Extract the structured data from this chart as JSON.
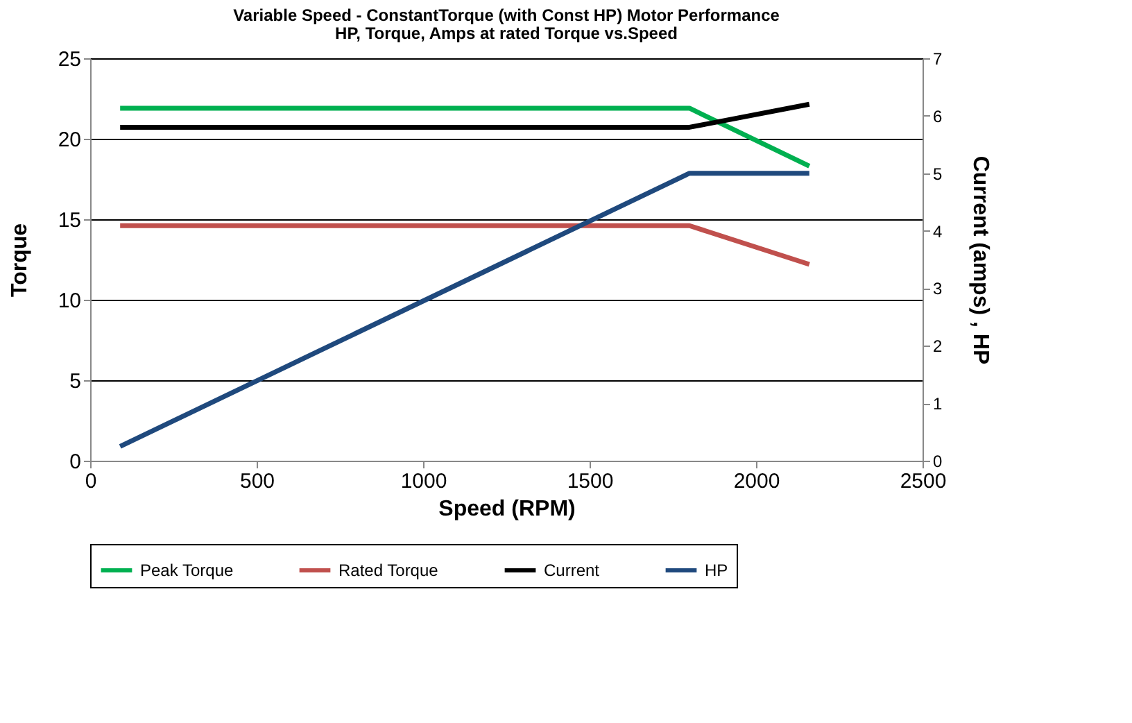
{
  "chart_data": {
    "type": "line",
    "title": "Variable Speed - ConstantTorque  (with  Const HP) Motor Performance",
    "subtitle": "HP, Torque, Amps at rated Torque vs.Speed",
    "xlabel": "Speed (RPM)",
    "ylabel": "Torque",
    "y2label": "Current (amps) , HP",
    "x": [
      90,
      1800,
      2160
    ],
    "series": [
      {
        "name": "Peak Torque",
        "color": "#00b050",
        "values": [
          21.9,
          21.9,
          18.3
        ]
      },
      {
        "name": "Rated Torque",
        "color": "#c0504d",
        "values": [
          14.6,
          14.6,
          12.2
        ]
      },
      {
        "name": "Current",
        "color": "#000000",
        "values": [
          5.8,
          5.8,
          6.2
        ],
        "axis": "y2"
      },
      {
        "name": "HP",
        "color": "#1f497d",
        "values": [
          0.25,
          5.0,
          5.0
        ],
        "axis": "y2"
      }
    ],
    "xlim": [
      0,
      2500
    ],
    "xticks": [
      0,
      500,
      1000,
      1500,
      2000,
      2500
    ],
    "ylim": [
      0,
      25
    ],
    "yticks": [
      0,
      5,
      10,
      15,
      20,
      25
    ],
    "y2lim": [
      0,
      7
    ],
    "y2ticks": [
      0,
      1,
      2,
      3,
      4,
      5,
      6,
      7
    ],
    "grid": "y",
    "legend": "bottom",
    "marker": "none",
    "line_style": "solid"
  }
}
